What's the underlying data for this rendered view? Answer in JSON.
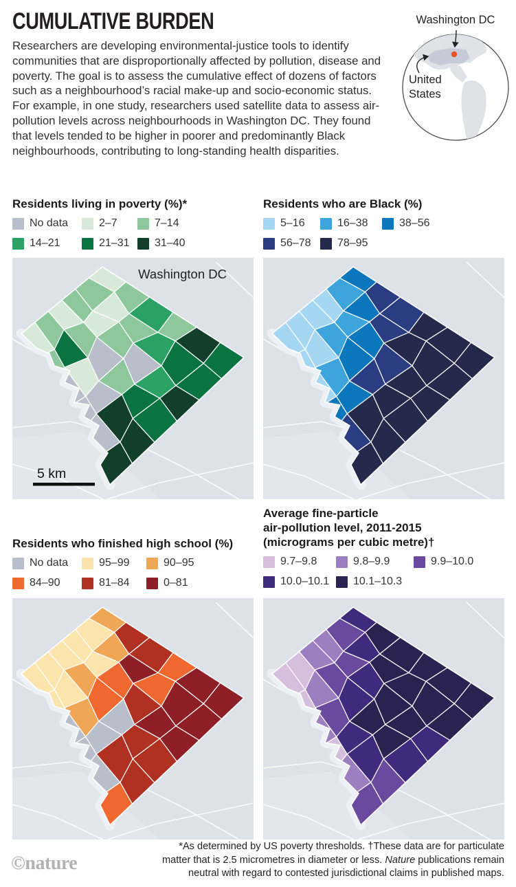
{
  "header": {
    "title": "CUMULATIVE BURDEN",
    "paragraph": "Researchers are developing environmental-justice tools to identify communities that are disproportionally affected by pollution, disease and poverty. The goal is to assess the cumulative effect of dozens of factors such as a neighbourhood’s racial make-up and socio-economic status. For example, in one study, researchers used satellite data to assess air-pollution levels across neighbourhoods in Washington DC. They found that levels tended to be higher in poorer and predominantly Black neighbourhoods, contributing to long-standing health disparities."
  },
  "locator": {
    "city": "Washington DC",
    "country_line1": "United",
    "country_line2": "States",
    "ocean": "#ffffff",
    "land": "#dfe3e8",
    "us": "#c5ccd8",
    "dot": "#e8532c",
    "ring": "#4a4a4a"
  },
  "map_style": {
    "background": "#dde1e8",
    "outside_tint": "#e3e7ec",
    "road": "#ffffff",
    "river": "#edf0f4",
    "border": "#ffffff"
  },
  "chart_data": [
    {
      "id": "poverty",
      "type": "choropleth",
      "area": "Washington DC",
      "title_lines": [
        "Residents living in poverty (%)*"
      ],
      "legend_columns": "101px 81px auto",
      "map_label": "Washington DC",
      "scale_label": "5 km",
      "classes": [
        {
          "label": "No data",
          "color": "#b8bfca"
        },
        {
          "label": "2–7",
          "color": "#d8e9da"
        },
        {
          "label": "7–14",
          "color": "#8fc79d"
        },
        {
          "label": "14–21",
          "color": "#2ba264"
        },
        {
          "label": "21–31",
          "color": "#0a7342"
        },
        {
          "label": "31–40",
          "color": "#123f2a"
        }
      ],
      "cells": [
        [
          1,
          2,
          3,
          2,
          5,
          4
        ],
        [
          2,
          1,
          2,
          3,
          4,
          4
        ],
        [
          2,
          1,
          2,
          0,
          3,
          5
        ],
        [
          1,
          2,
          0,
          2,
          4,
          4
        ],
        [
          2,
          4,
          1,
          0,
          5,
          5
        ],
        [
          1,
          2,
          0,
          0,
          0,
          5
        ]
      ]
    },
    {
      "id": "black-residents",
      "type": "choropleth",
      "area": "Washington DC",
      "title_lines": [
        "Residents who are Black (%)"
      ],
      "legend_columns": "83px 90px auto",
      "classes": [
        {
          "label": "5–16",
          "color": "#a6d7f2"
        },
        {
          "label": "16–38",
          "color": "#3ea5dc"
        },
        {
          "label": "38–56",
          "color": "#0c77bd"
        },
        {
          "label": "56–78",
          "color": "#2a3c82"
        },
        {
          "label": "78–95",
          "color": "#252a4c"
        }
      ],
      "cells": [
        [
          2,
          3,
          3,
          4,
          4,
          4
        ],
        [
          1,
          2,
          3,
          4,
          4,
          4
        ],
        [
          0,
          1,
          2,
          3,
          4,
          4
        ],
        [
          0,
          1,
          2,
          3,
          4,
          4
        ],
        [
          0,
          0,
          1,
          2,
          4,
          4
        ],
        [
          0,
          0,
          0,
          2,
          3,
          4
        ]
      ]
    },
    {
      "id": "high-school",
      "type": "choropleth",
      "area": "Washington DC",
      "title_lines": [
        "Residents who finished high school (%)"
      ],
      "legend_columns": "101px 94px auto",
      "classes": [
        {
          "label": "No data",
          "color": "#b8bfca"
        },
        {
          "label": "95–99",
          "color": "#fbe5ad"
        },
        {
          "label": "90–95",
          "color": "#f0a657"
        },
        {
          "label": "84–90",
          "color": "#ee6830"
        },
        {
          "label": "81–84",
          "color": "#b03122"
        },
        {
          "label": "0–81",
          "color": "#8f1f26"
        }
      ],
      "cells": [
        [
          2,
          4,
          4,
          3,
          5,
          5
        ],
        [
          1,
          2,
          5,
          3,
          5,
          5
        ],
        [
          1,
          1,
          3,
          4,
          5,
          5
        ],
        [
          1,
          2,
          3,
          0,
          4,
          4
        ],
        [
          1,
          1,
          2,
          0,
          4,
          4
        ],
        [
          1,
          1,
          0,
          0,
          0,
          3
        ]
      ]
    },
    {
      "id": "air-pollution",
      "type": "choropleth",
      "area": "Washington DC",
      "title_lines": [
        "Average fine-particle",
        "air-pollution level, 2011-2015",
        "(micrograms per cubic metre)†"
      ],
      "legend_columns": "106px 113px auto",
      "classes": [
        {
          "label": "9.7–9.8",
          "color": "#d5bfdd"
        },
        {
          "label": "9.8–9.9",
          "color": "#9c7fc0"
        },
        {
          "label": "9.9–10.0",
          "color": "#6a4a9e"
        },
        {
          "label": "10.0–10.1",
          "color": "#3f2a7d"
        },
        {
          "label": "10.1–10.3",
          "color": "#2a2352"
        }
      ],
      "cells": [
        [
          3,
          4,
          4,
          4,
          4,
          4
        ],
        [
          2,
          3,
          4,
          4,
          4,
          4
        ],
        [
          1,
          2,
          3,
          4,
          4,
          3
        ],
        [
          1,
          2,
          3,
          4,
          4,
          3
        ],
        [
          0,
          1,
          2,
          3,
          3,
          2
        ],
        [
          0,
          0,
          1,
          0,
          1,
          2
        ]
      ]
    }
  ],
  "footer": {
    "line1": "*As determined by US poverty thresholds. †These data are for particulate",
    "line2_pre": "matter that is 2.5 micrometres in diameter or less. ",
    "line2_italic": "Nature",
    "line2_post": " publications remain",
    "line3": "neutral with regard to contested jurisdictional claims in published maps.",
    "logo": "©nature"
  }
}
